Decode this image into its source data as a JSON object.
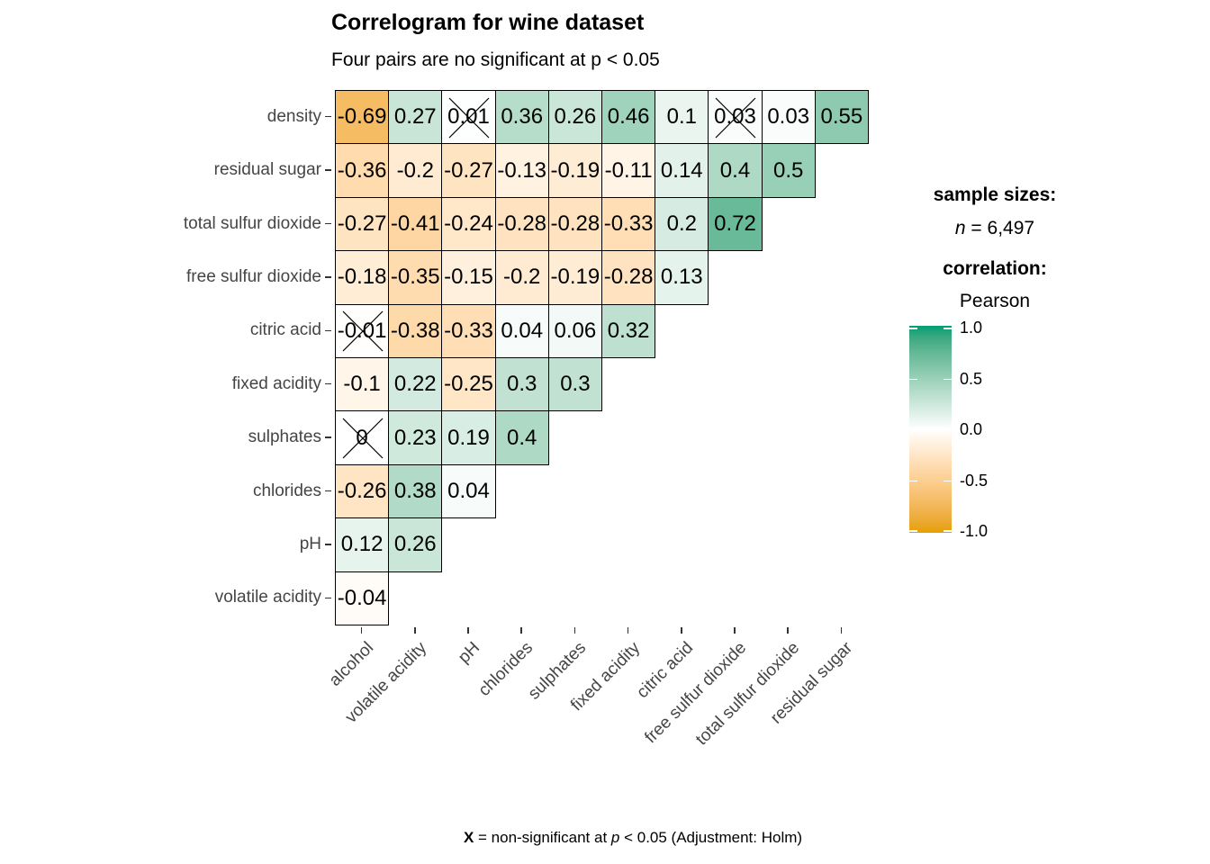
{
  "title": "Correlogram for wine dataset",
  "subtitle": "Four pairs are no significant at p < 0.05",
  "legend": {
    "sample_sizes_heading": "sample sizes:",
    "n_symbol": "n",
    "n_value": " = 6,497",
    "correlation_heading": "correlation:",
    "method": "Pearson",
    "ticks": [
      "1.0",
      "0.5",
      "0.0",
      "-0.5",
      "-1.0"
    ],
    "gradient_top_color": "#009E73",
    "gradient_mid_color": "#FFFFFF",
    "gradient_bottom_color": "#E69F00"
  },
  "caption": {
    "x_symbol": "X",
    "text_mid": " = non-significant at ",
    "p_symbol": "p",
    "text_end": " < 0.05 (Adjustment: Holm)"
  },
  "chart_data": {
    "type": "heatmap",
    "title": "Correlogram for wine dataset",
    "subtitle": "Four pairs are no significant at p < 0.05",
    "correlation_method": "Pearson",
    "sample_size_n": "6,497",
    "colorscale": {
      "limits": [
        -1,
        1
      ],
      "negative_end": "#E69F00",
      "midpoint": "#FFFFFF",
      "positive_end": "#009E73",
      "legend_ticks": [
        1.0,
        0.5,
        0.0,
        -0.5,
        -1.0
      ]
    },
    "x_categories": [
      "alcohol",
      "volatile acidity",
      "pH",
      "chlorides",
      "sulphates",
      "fixed acidity",
      "citric acid",
      "free sulfur dioxide",
      "total sulfur dioxide",
      "residual sugar"
    ],
    "y_categories": [
      "density",
      "residual sugar",
      "total sulfur dioxide",
      "free sulfur dioxide",
      "citric acid",
      "fixed acidity",
      "sulphates",
      "chlorides",
      "pH",
      "volatile acidity"
    ],
    "rows": [
      {
        "name": "density",
        "values": [
          "-0.69",
          "0.27",
          "0.01",
          "0.36",
          "0.26",
          "0.46",
          "0.1",
          "0.03",
          "0.03",
          "0.55"
        ],
        "crossed": [
          2,
          7
        ]
      },
      {
        "name": "residual sugar",
        "values": [
          "-0.36",
          "-0.2",
          "-0.27",
          "-0.13",
          "-0.19",
          "-0.11",
          "0.14",
          "0.4",
          "0.5"
        ],
        "crossed": []
      },
      {
        "name": "total sulfur dioxide",
        "values": [
          "-0.27",
          "-0.41",
          "-0.24",
          "-0.28",
          "-0.28",
          "-0.33",
          "0.2",
          "0.72"
        ],
        "crossed": []
      },
      {
        "name": "free sulfur dioxide",
        "values": [
          "-0.18",
          "-0.35",
          "-0.15",
          "-0.2",
          "-0.19",
          "-0.28",
          "0.13"
        ],
        "crossed": []
      },
      {
        "name": "citric acid",
        "values": [
          "-0.01",
          "-0.38",
          "-0.33",
          "0.04",
          "0.06",
          "0.32"
        ],
        "crossed": [
          0
        ]
      },
      {
        "name": "fixed acidity",
        "values": [
          "-0.1",
          "0.22",
          "-0.25",
          "0.3",
          "0.3"
        ],
        "crossed": []
      },
      {
        "name": "sulphates",
        "values": [
          "0",
          "0.23",
          "0.19",
          "0.4"
        ],
        "crossed": [
          0
        ]
      },
      {
        "name": "chlorides",
        "values": [
          "-0.26",
          "0.38",
          "0.04"
        ],
        "crossed": []
      },
      {
        "name": "pH",
        "values": [
          "0.12",
          "0.26"
        ],
        "crossed": []
      },
      {
        "name": "volatile acidity",
        "values": [
          "-0.04"
        ],
        "crossed": []
      }
    ],
    "non_significant_note": "X = non-significant at p < 0.05 (Adjustment: Holm)"
  }
}
